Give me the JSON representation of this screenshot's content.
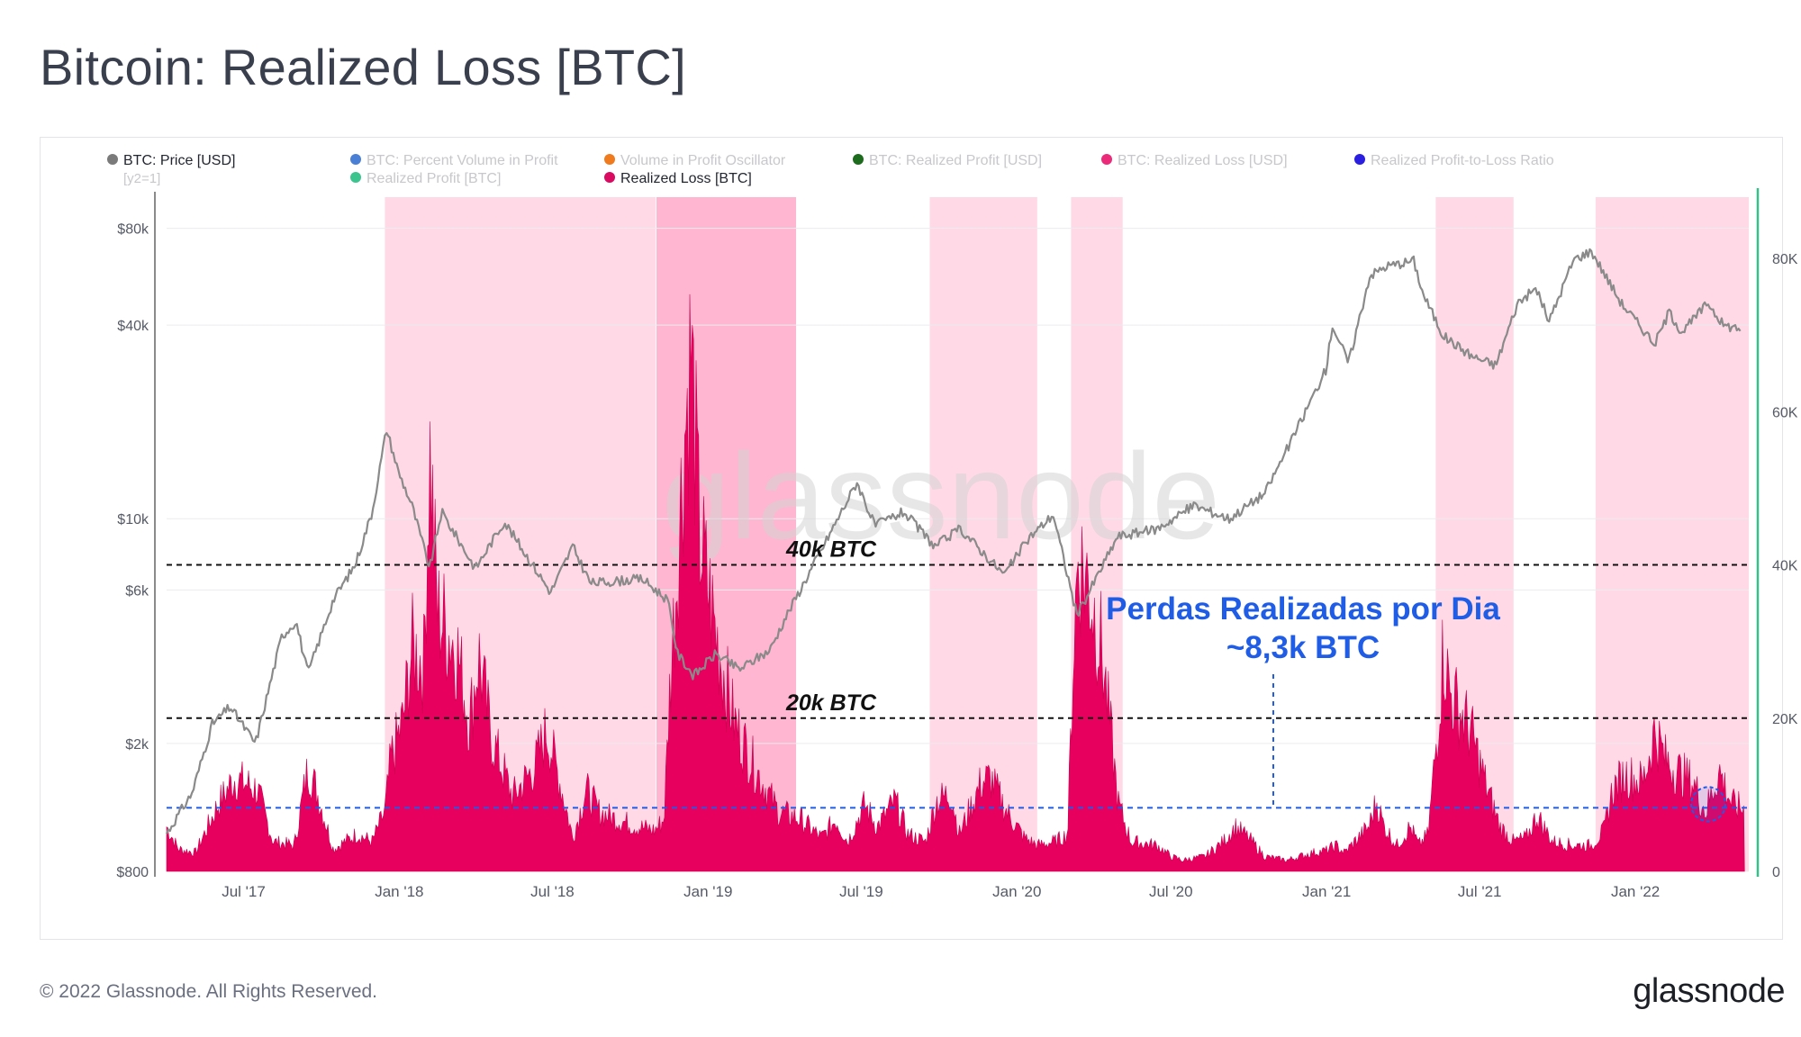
{
  "title": "Bitcoin: Realized Loss [BTC]",
  "footer": {
    "copyright": "© 2022 Glassnode. All Rights Reserved.",
    "logo": "glassnode"
  },
  "watermark": "glassnode",
  "colors": {
    "price": "#8a8a8a",
    "loss": "#e8005f",
    "band_light": "#ffd9e6",
    "band_dark": "#ffb6d0",
    "threshold_black": "#111111",
    "threshold_blue": "#1f5de6",
    "axis_right": "#34c08a"
  },
  "legend": [
    {
      "label": "BTC: Price [USD]",
      "color": "#7a7a7a",
      "active": true,
      "sub": "[y2=1]"
    },
    {
      "label": "BTC: Percent Volume in Profit",
      "color": "#4a7fd6",
      "active": false
    },
    {
      "label": "Realized Profit [BTC]",
      "color": "#3cc48f",
      "active": false
    },
    {
      "label": "Volume in Profit Oscillator",
      "color": "#f07a1e",
      "active": false
    },
    {
      "label": "Realized Loss [BTC]",
      "color": "#d90a60",
      "active": true
    },
    {
      "label": "BTC: Realized Profit [USD]",
      "color": "#1d6b1d",
      "active": false
    },
    {
      "label": "BTC: Realized Loss [USD]",
      "color": "#ec2a7a",
      "active": false
    },
    {
      "label": "Realized Profit-to-Loss Ratio",
      "color": "#2a1ee0",
      "active": false
    }
  ],
  "annotations": {
    "line_40k": "40k BTC",
    "line_20k": "20k BTC",
    "callout_line1": "Perdas Realizadas por Dia",
    "callout_line2": "~8,3k BTC"
  },
  "chart_data": {
    "type": "area",
    "title": "Bitcoin: Realized Loss [BTC]",
    "x_range": [
      "2017-04-01",
      "2022-05-15"
    ],
    "x_ticks": [
      "Jul '17",
      "Jan '18",
      "Jul '18",
      "Jan '19",
      "Jul '19",
      "Jan '20",
      "Jul '20",
      "Jan '21",
      "Jul '21",
      "Jan '22"
    ],
    "y_left": {
      "label": "BTC: Price [USD]",
      "scale": "log",
      "range": [
        800,
        100000
      ],
      "ticks": [
        {
          "value": 800,
          "label": "$800"
        },
        {
          "value": 2000,
          "label": "$2k"
        },
        {
          "value": 6000,
          "label": "$6k"
        },
        {
          "value": 10000,
          "label": "$10k"
        },
        {
          "value": 40000,
          "label": "$40k"
        },
        {
          "value": 80000,
          "label": "$80k"
        }
      ]
    },
    "y_right": {
      "label": "Realized Loss [BTC]",
      "scale": "linear",
      "range": [
        0,
        88000
      ],
      "ticks": [
        {
          "value": 0,
          "label": "0"
        },
        {
          "value": 20000,
          "label": "20K"
        },
        {
          "value": 40000,
          "label": "40K"
        },
        {
          "value": 60000,
          "label": "60K"
        },
        {
          "value": 80000,
          "label": "80K"
        }
      ]
    },
    "thresholds": [
      {
        "value": 40000,
        "label": "40k BTC",
        "color": "#111111"
      },
      {
        "value": 20000,
        "label": "20k BTC",
        "color": "#111111"
      },
      {
        "value": 8300,
        "label": "~8,3k BTC",
        "color": "#1f5de6"
      }
    ],
    "bands": [
      {
        "start": "2017-12-15",
        "end": "2018-10-31",
        "shade": "light"
      },
      {
        "start": "2018-11-01",
        "end": "2019-04-15",
        "shade": "dark"
      },
      {
        "start": "2019-09-20",
        "end": "2020-01-25",
        "shade": "light"
      },
      {
        "start": "2020-03-05",
        "end": "2020-05-05",
        "shade": "light"
      },
      {
        "start": "2021-05-10",
        "end": "2021-08-10",
        "shade": "light"
      },
      {
        "start": "2021-11-15",
        "end": "2022-05-15",
        "shade": "light"
      }
    ],
    "series": [
      {
        "name": "BTC: Price [USD]",
        "axis": "left",
        "points": [
          [
            "2017-04-01",
            1050
          ],
          [
            "2017-05-01",
            1400
          ],
          [
            "2017-05-25",
            2300
          ],
          [
            "2017-06-15",
            2600
          ],
          [
            "2017-07-15",
            2000
          ],
          [
            "2017-08-15",
            4300
          ],
          [
            "2017-09-01",
            4800
          ],
          [
            "2017-09-15",
            3300
          ],
          [
            "2017-10-15",
            5600
          ],
          [
            "2017-11-10",
            7200
          ],
          [
            "2017-11-30",
            10500
          ],
          [
            "2017-12-17",
            19000
          ],
          [
            "2017-12-31",
            14000
          ],
          [
            "2018-01-16",
            11000
          ],
          [
            "2018-02-06",
            7000
          ],
          [
            "2018-02-20",
            10500
          ],
          [
            "2018-04-01",
            7000
          ],
          [
            "2018-05-05",
            9800
          ],
          [
            "2018-06-29",
            5900
          ],
          [
            "2018-07-25",
            8200
          ],
          [
            "2018-08-15",
            6300
          ],
          [
            "2018-10-15",
            6500
          ],
          [
            "2018-11-14",
            5600
          ],
          [
            "2018-11-26",
            3800
          ],
          [
            "2018-12-15",
            3250
          ],
          [
            "2019-01-10",
            3800
          ],
          [
            "2019-02-07",
            3400
          ],
          [
            "2019-03-15",
            3900
          ],
          [
            "2019-04-02",
            4900
          ],
          [
            "2019-05-15",
            8000
          ],
          [
            "2019-06-26",
            13000
          ],
          [
            "2019-07-17",
            9500
          ],
          [
            "2019-08-20",
            10500
          ],
          [
            "2019-09-26",
            8200
          ],
          [
            "2019-10-26",
            9300
          ],
          [
            "2019-12-17",
            6700
          ],
          [
            "2020-01-15",
            8700
          ],
          [
            "2020-02-13",
            10300
          ],
          [
            "2020-03-12",
            5000
          ],
          [
            "2020-04-29",
            8800
          ],
          [
            "2020-06-15",
            9300
          ],
          [
            "2020-07-28",
            11000
          ],
          [
            "2020-09-08",
            10000
          ],
          [
            "2020-10-20",
            12000
          ],
          [
            "2020-11-25",
            18500
          ],
          [
            "2020-12-31",
            29000
          ],
          [
            "2021-01-08",
            40000
          ],
          [
            "2021-01-27",
            30500
          ],
          [
            "2021-02-21",
            57000
          ],
          [
            "2021-03-13",
            61000
          ],
          [
            "2021-04-14",
            63500
          ],
          [
            "2021-04-25",
            50000
          ],
          [
            "2021-05-19",
            37000
          ],
          [
            "2021-06-22",
            32000
          ],
          [
            "2021-07-20",
            30000
          ],
          [
            "2021-08-15",
            47000
          ],
          [
            "2021-09-06",
            52000
          ],
          [
            "2021-09-21",
            41000
          ],
          [
            "2021-10-20",
            64000
          ],
          [
            "2021-11-10",
            68000
          ],
          [
            "2021-12-15",
            47000
          ],
          [
            "2022-01-24",
            35000
          ],
          [
            "2022-02-10",
            44000
          ],
          [
            "2022-02-25",
            38000
          ],
          [
            "2022-03-28",
            47000
          ],
          [
            "2022-04-15",
            40000
          ],
          [
            "2022-05-05",
            39000
          ]
        ]
      },
      {
        "name": "Realized Loss [BTC]",
        "axis": "right",
        "points": [
          [
            "2017-04-01",
            6000
          ],
          [
            "2017-04-15",
            3000
          ],
          [
            "2017-05-05",
            2500
          ],
          [
            "2017-06-01",
            9000
          ],
          [
            "2017-06-20",
            12500
          ],
          [
            "2017-07-17",
            11000
          ],
          [
            "2017-08-05",
            4000
          ],
          [
            "2017-08-30",
            3500
          ],
          [
            "2017-09-15",
            14000
          ],
          [
            "2017-09-25",
            11000
          ],
          [
            "2017-10-15",
            3000
          ],
          [
            "2017-11-12",
            5000
          ],
          [
            "2017-11-30",
            4000
          ],
          [
            "2017-12-15",
            8000
          ],
          [
            "2017-12-22",
            15000
          ],
          [
            "2018-01-05",
            20000
          ],
          [
            "2018-01-16",
            30000
          ],
          [
            "2018-01-30",
            28000
          ],
          [
            "2018-02-06",
            57000
          ],
          [
            "2018-02-15",
            35000
          ],
          [
            "2018-03-10",
            30000
          ],
          [
            "2018-03-25",
            20000
          ],
          [
            "2018-04-05",
            29000
          ],
          [
            "2018-04-20",
            18000
          ],
          [
            "2018-05-15",
            10000
          ],
          [
            "2018-06-10",
            14000
          ],
          [
            "2018-06-24",
            19000
          ],
          [
            "2018-07-10",
            12000
          ],
          [
            "2018-07-25",
            4500
          ],
          [
            "2018-08-10",
            11000
          ],
          [
            "2018-08-25",
            8000
          ],
          [
            "2018-09-15",
            7000
          ],
          [
            "2018-10-10",
            6000
          ],
          [
            "2018-10-30",
            5500
          ],
          [
            "2018-11-10",
            7000
          ],
          [
            "2018-11-17",
            25000
          ],
          [
            "2018-11-25",
            40000
          ],
          [
            "2018-12-05",
            60000
          ],
          [
            "2018-12-12",
            70000
          ],
          [
            "2018-12-22",
            45000
          ],
          [
            "2019-01-10",
            32000
          ],
          [
            "2019-02-01",
            20000
          ],
          [
            "2019-02-25",
            14000
          ],
          [
            "2019-03-25",
            8000
          ],
          [
            "2019-04-20",
            7000
          ],
          [
            "2019-05-15",
            4500
          ],
          [
            "2019-06-01",
            7000
          ],
          [
            "2019-06-15",
            4000
          ],
          [
            "2019-07-05",
            9000
          ],
          [
            "2019-07-20",
            6000
          ],
          [
            "2019-08-10",
            9500
          ],
          [
            "2019-08-25",
            5000
          ],
          [
            "2019-09-15",
            4000
          ],
          [
            "2019-09-28",
            9500
          ],
          [
            "2019-10-15",
            10500
          ],
          [
            "2019-10-25",
            5000
          ],
          [
            "2019-11-20",
            12000
          ],
          [
            "2019-12-01",
            12500
          ],
          [
            "2019-12-20",
            8000
          ],
          [
            "2020-01-10",
            4500
          ],
          [
            "2020-01-25",
            3500
          ],
          [
            "2020-02-15",
            4000
          ],
          [
            "2020-03-01",
            5000
          ],
          [
            "2020-03-08",
            30000
          ],
          [
            "2020-03-13",
            42000
          ],
          [
            "2020-03-25",
            39000
          ],
          [
            "2020-04-10",
            30000
          ],
          [
            "2020-04-30",
            9000
          ],
          [
            "2020-05-15",
            4000
          ],
          [
            "2020-06-15",
            3500
          ],
          [
            "2020-07-01",
            2000
          ],
          [
            "2020-07-15",
            1500
          ],
          [
            "2020-08-10",
            2000
          ],
          [
            "2020-09-01",
            4000
          ],
          [
            "2020-09-15",
            6000
          ],
          [
            "2020-10-01",
            4500
          ],
          [
            "2020-10-20",
            2000
          ],
          [
            "2020-11-15",
            1500
          ],
          [
            "2020-12-15",
            2500
          ],
          [
            "2021-01-01",
            2800
          ],
          [
            "2021-01-12",
            3500
          ],
          [
            "2021-01-22",
            2500
          ],
          [
            "2021-02-20",
            6000
          ],
          [
            "2021-03-01",
            9500
          ],
          [
            "2021-03-10",
            6000
          ],
          [
            "2021-03-25",
            3500
          ],
          [
            "2021-04-10",
            6000
          ],
          [
            "2021-04-20",
            3500
          ],
          [
            "2021-05-01",
            5000
          ],
          [
            "2021-05-12",
            19000
          ],
          [
            "2021-05-19",
            30000
          ],
          [
            "2021-05-27",
            24000
          ],
          [
            "2021-06-20",
            19000
          ],
          [
            "2021-07-10",
            11000
          ],
          [
            "2021-07-25",
            6000
          ],
          [
            "2021-08-10",
            4000
          ],
          [
            "2021-08-25",
            4500
          ],
          [
            "2021-09-07",
            7500
          ],
          [
            "2021-09-25",
            4000
          ],
          [
            "2021-10-20",
            3500
          ],
          [
            "2021-11-10",
            3500
          ],
          [
            "2021-11-25",
            5500
          ],
          [
            "2021-12-05",
            11000
          ],
          [
            "2021-12-20",
            13000
          ],
          [
            "2022-01-10",
            12000
          ],
          [
            "2022-01-24",
            19000
          ],
          [
            "2022-02-05",
            15000
          ],
          [
            "2022-02-25",
            13000
          ],
          [
            "2022-03-10",
            12000
          ],
          [
            "2022-03-25",
            8000
          ],
          [
            "2022-04-10",
            13500
          ],
          [
            "2022-04-25",
            9000
          ],
          [
            "2022-05-10",
            8300
          ]
        ]
      }
    ]
  }
}
